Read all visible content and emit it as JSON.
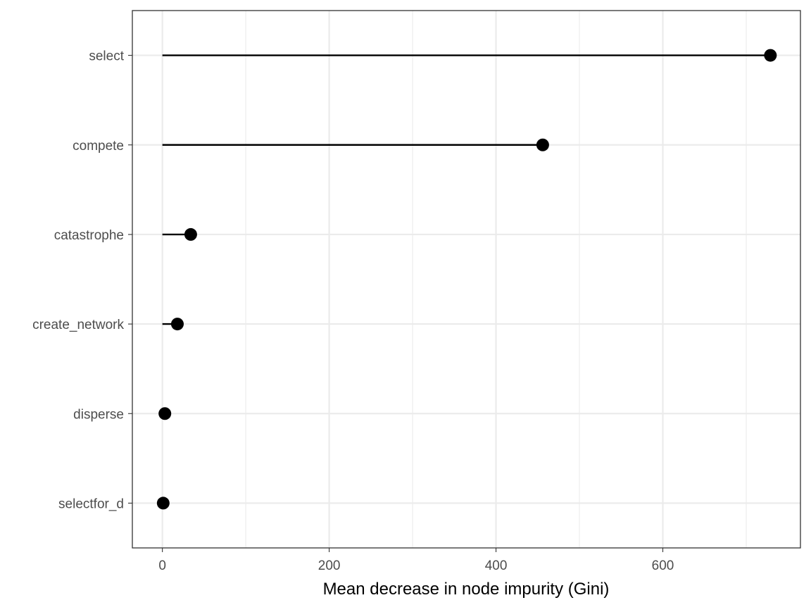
{
  "chart_data": {
    "type": "lollipop",
    "title": "",
    "xlabel": "Mean decrease in node impurity (Gini)",
    "ylabel": "",
    "categories": [
      "selectfor_d",
      "disperse",
      "create_network",
      "catastrophe",
      "compete",
      "select"
    ],
    "values": [
      1,
      3,
      18,
      34,
      456,
      729
    ],
    "xlim": [
      -36,
      765
    ],
    "x_ticks": [
      0,
      200,
      400,
      600
    ],
    "x_minor_ticks": [
      100,
      300,
      500,
      700
    ],
    "grid": true,
    "legend": "none",
    "colors": {
      "marks": "#000000",
      "grid": "#ebebeb",
      "panel_border": "#333333",
      "tick_text": "#4d4d4d"
    }
  }
}
